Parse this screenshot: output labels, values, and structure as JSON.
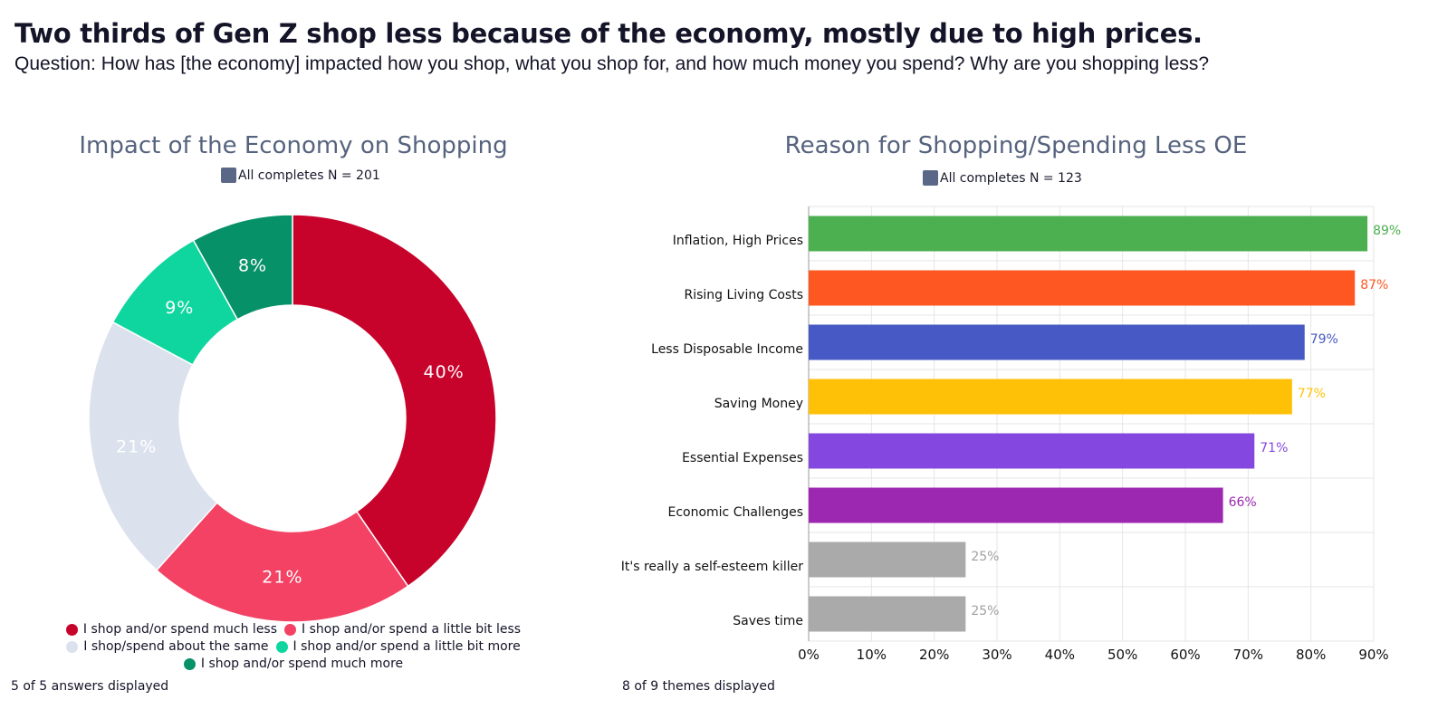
{
  "headline": "Two thirds of Gen Z shop less because of the economy, mostly due to high prices.",
  "question": "Question: How has [the economy] impacted how you shop, what you shop for, and how much money you spend? Why are you shopping less?",
  "chart_data": [
    {
      "type": "pie",
      "title": "Impact of the Economy on Shopping",
      "legend_label": "All completes N = 201",
      "categories": [
        "I shop and/or spend much less",
        "I shop and/or spend a little bit less",
        "I shop/spend about the same",
        "I shop and/or spend a little bit more",
        "I shop and/or spend much more"
      ],
      "values": [
        40,
        21,
        21,
        9,
        8
      ],
      "labels": [
        "40%",
        "21%",
        "21%",
        "9%",
        "8%"
      ],
      "colors": [
        "#c8032b",
        "#f34264",
        "#dce1ee",
        "#0fd69e",
        "#079168"
      ],
      "label_colors": [
        "#ffffff",
        "#ffffff",
        "#ffffff",
        "#ffffff",
        "#ffffff"
      ],
      "legend_placement": "bottom",
      "footer": "5 of 5 answers displayed"
    },
    {
      "type": "bar",
      "orientation": "horizontal",
      "title": "Reason for Shopping/Spending Less OE",
      "legend_label": "All completes N = 123",
      "categories": [
        "Inflation, High Prices",
        "Rising Living Costs",
        "Less Disposable Income",
        "Saving Money",
        "Essential Expenses",
        "Economic Challenges",
        "It's really a self-esteem killer",
        "Saves time"
      ],
      "values": [
        89,
        87,
        79,
        77,
        71,
        66,
        25,
        25
      ],
      "labels": [
        "89%",
        "87%",
        "79%",
        "77%",
        "71%",
        "66%",
        "25%",
        "25%"
      ],
      "colors": [
        "#4caf50",
        "#ff5722",
        "#4659c4",
        "#ffc107",
        "#8448e0",
        "#9c27b0",
        "#aaaaaa",
        "#aaaaaa"
      ],
      "xlim": [
        0,
        90
      ],
      "xticks": [
        "0%",
        "10%",
        "20%",
        "30%",
        "40%",
        "50%",
        "60%",
        "70%",
        "80%",
        "90%"
      ],
      "grid": true,
      "footer": "8 of 9 themes displayed"
    }
  ]
}
